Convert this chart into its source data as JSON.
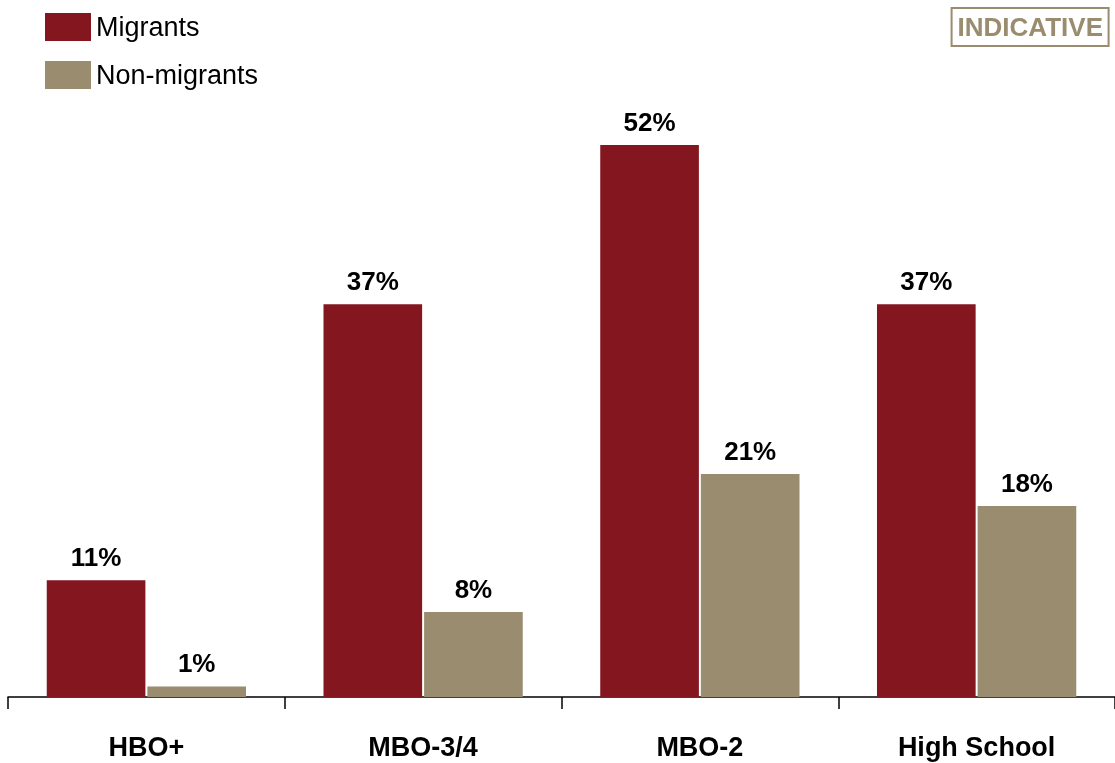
{
  "chart_data": {
    "type": "bar",
    "categories": [
      "HBO+",
      "MBO-3/4",
      "MBO-2",
      "High School"
    ],
    "series": [
      {
        "name": "Migrants",
        "color": "#841620",
        "values": [
          11,
          37,
          52,
          37
        ],
        "value_labels": [
          "11%",
          "37%",
          "52%",
          "37%"
        ]
      },
      {
        "name": "Non-migrants",
        "color": "#9a8c6e",
        "values": [
          1,
          8,
          21,
          18
        ],
        "value_labels": [
          "1%",
          "8%",
          "21%",
          "18%"
        ]
      }
    ],
    "annotations": [
      "INDICATIVE"
    ],
    "legend": "top left"
  }
}
